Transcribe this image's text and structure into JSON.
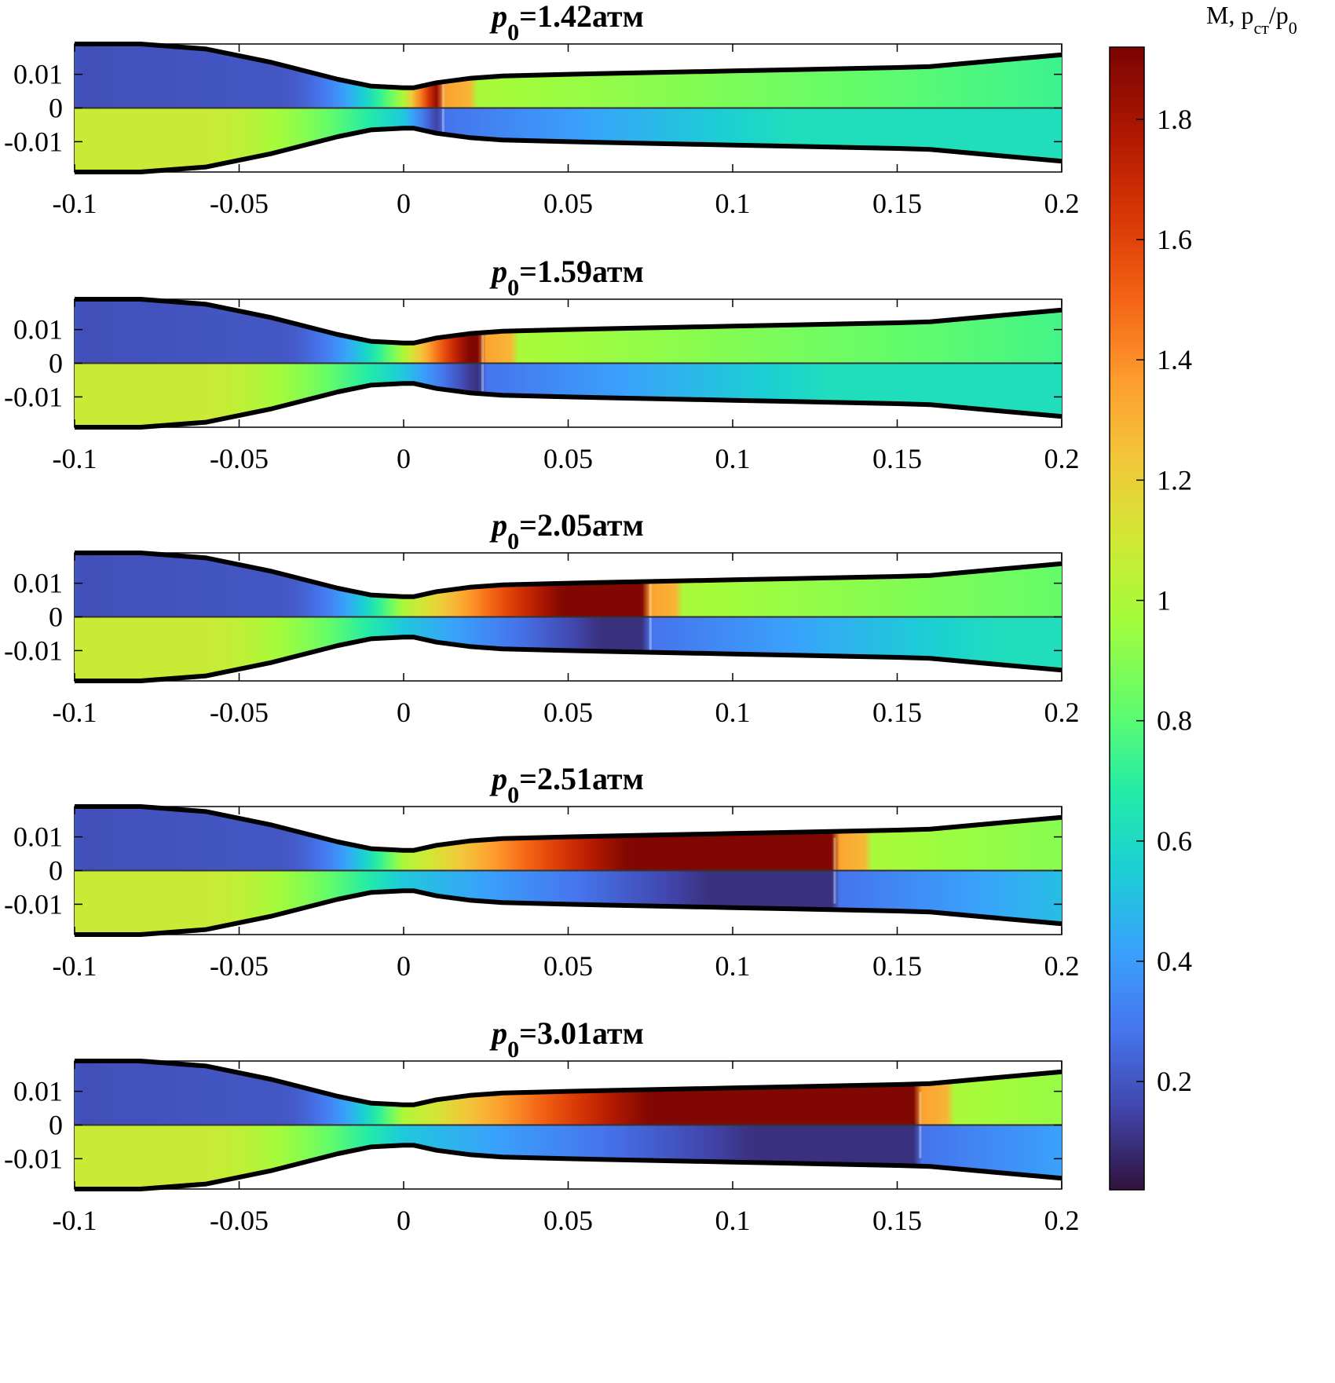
{
  "figure": {
    "colorbar": {
      "title_main": "M, p",
      "title_sub1": "ст",
      "title_slash": "/p",
      "title_sub2": "0",
      "ticks": [
        "0.2",
        "0.4",
        "0.6",
        "0.8",
        "1",
        "1.2",
        "1.4",
        "1.6",
        "1.8"
      ],
      "range": [
        0.02,
        1.92
      ]
    },
    "colors": {
      "wall": "#000000",
      "axis": "#000000"
    }
  },
  "chart_data": {
    "type": "heatmap",
    "description_note": "",
    "colormap": "turbo",
    "quantities": [
      "M (upper half, y>0)",
      "p_ст/p_0 (lower half, y<0)"
    ],
    "xlim": [
      -0.1,
      0.2
    ],
    "ylim": [
      -0.019,
      0.019
    ],
    "x_ticks": [
      "-0.1",
      "-0.05",
      "0",
      "0.05",
      "0.1",
      "0.15",
      "0.2"
    ],
    "y_ticks": [
      "0.01",
      "0",
      "-0.01"
    ],
    "nozzle_wall_half_height": [
      [
        -0.1,
        0.019
      ],
      [
        -0.08,
        0.019
      ],
      [
        -0.06,
        0.0175
      ],
      [
        -0.04,
        0.0135
      ],
      [
        -0.02,
        0.0085
      ],
      [
        -0.01,
        0.0065
      ],
      [
        0,
        0.006
      ],
      [
        0.003,
        0.006
      ],
      [
        0.01,
        0.0075
      ],
      [
        0.02,
        0.0088
      ],
      [
        0.03,
        0.0095
      ],
      [
        0.05,
        0.01
      ],
      [
        0.1,
        0.011
      ],
      [
        0.15,
        0.012
      ],
      [
        0.16,
        0.0123
      ],
      [
        0.2,
        0.0158
      ]
    ],
    "panels": [
      {
        "title_p": "p",
        "title_sub": "0",
        "title_rest": "=1.42атм",
        "p0_atm": 1.42,
        "shock_x": 0.012
      },
      {
        "title_p": "p",
        "title_sub": "0",
        "title_rest": "=1.59атм",
        "p0_atm": 1.59,
        "shock_x": 0.024
      },
      {
        "title_p": "p",
        "title_sub": "0",
        "title_rest": "=2.05атм",
        "p0_atm": 2.05,
        "shock_x": 0.075
      },
      {
        "title_p": "p",
        "title_sub": "0",
        "title_rest": "=2.51атм",
        "p0_atm": 2.51,
        "shock_x": 0.131
      },
      {
        "title_p": "p",
        "title_sub": "0",
        "title_rest": "=3.01атм",
        "p0_atm": 3.01,
        "shock_x": 0.157
      }
    ]
  }
}
